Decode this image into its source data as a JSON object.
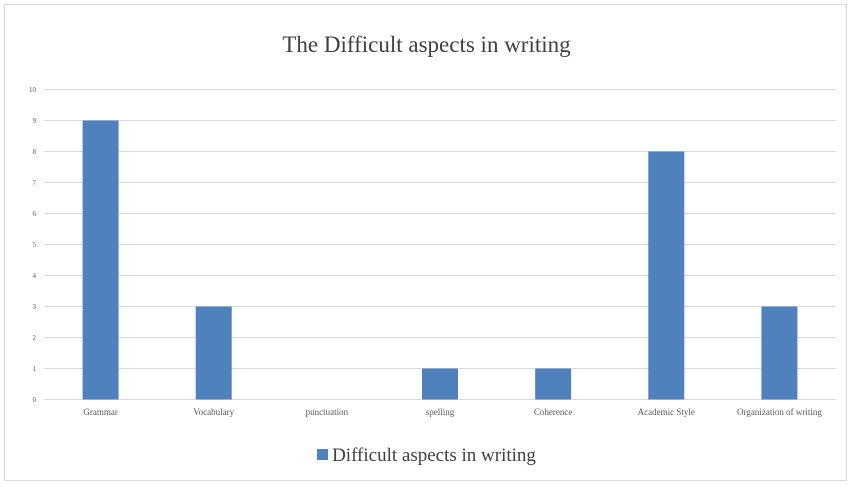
{
  "chart_data": {
    "type": "bar",
    "title": "The Difficult aspects in writing",
    "xlabel": "",
    "ylabel": "",
    "categories": [
      "Grammar",
      "Vocabulary",
      "punctuation",
      "spelling",
      "Coherence",
      "Academic Style",
      "Organization of writing"
    ],
    "series": [
      {
        "name": "Difficult aspects in writing",
        "values": [
          9,
          3,
          0,
          1,
          1,
          8,
          3
        ],
        "color": "#4f81bd"
      }
    ],
    "ylim": [
      0,
      10
    ],
    "yticks": [
      "0",
      "1",
      "2",
      "3",
      "4",
      "5",
      "6",
      "7",
      "8",
      "9",
      "10"
    ],
    "grid": true,
    "legend_position": "bottom"
  }
}
